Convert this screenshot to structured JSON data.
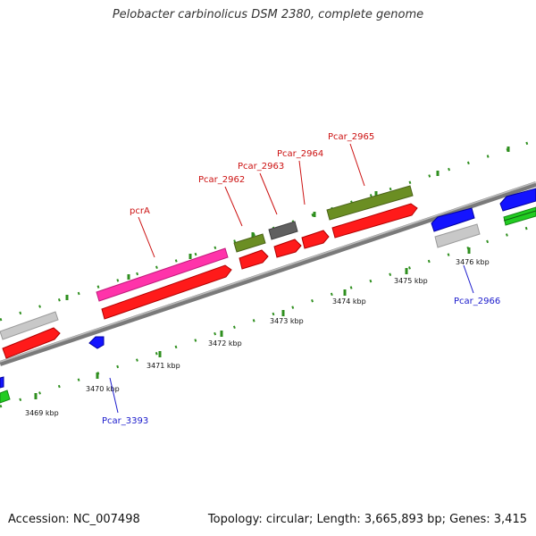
{
  "title": "Pelobacter carbinolicus DSM 2380, complete genome",
  "footer": {
    "accession": "Accession: NC_007498",
    "summary": "Topology: circular; Length: 3,665,893 bp; Genes: 3,415"
  },
  "colors": {
    "background": "#ffffff",
    "backbone": "#8a8a8a",
    "tick_dots": "#2f8f1f",
    "forward_label": "#cc1111",
    "reverse_label": "#1a1acc",
    "cds_red": "#ff1a1a",
    "gene_magenta": "#ff33aa",
    "gene_olive": "#6b8e23",
    "gene_gray": "#606060",
    "gene_lightgray": "#c8c8c8",
    "gene_blue": "#1414ff",
    "gene_green": "#22cc22"
  },
  "ticks": [
    {
      "label": "3469 kbp"
    },
    {
      "label": "3470 kbp"
    },
    {
      "label": "3471 kbp"
    },
    {
      "label": "3472 kbp"
    },
    {
      "label": "3473 kbp"
    },
    {
      "label": "3474 kbp"
    },
    {
      "label": "3475 kbp"
    },
    {
      "label": "3476 kbp"
    }
  ],
  "gene_labels": {
    "pcrA": "pcrA",
    "pcar_2962": "Pcar_2962",
    "pcar_2963": "Pcar_2963",
    "pcar_2964": "Pcar_2964",
    "pcar_2965": "Pcar_2965",
    "pcar_2966": "Pcar_2966",
    "pcar_3393": "Pcar_3393"
  }
}
